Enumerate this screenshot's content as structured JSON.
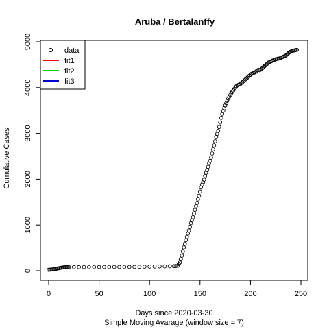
{
  "chart_data": {
    "type": "scatter",
    "title": "Aruba / Bertalanffy",
    "xlabel": "Days since 2020-03-30",
    "subtitle": "Simple Moving Avarage (window size = 7)",
    "ylabel": "Cumulative Cases",
    "xlim": [
      -6,
      254
    ],
    "ylim": [
      -200,
      5000
    ],
    "x_ticks": [
      0,
      50,
      100,
      150,
      200,
      250
    ],
    "y_ticks": [
      0,
      1000,
      2000,
      3000,
      4000,
      5000
    ],
    "grid": false,
    "legend": {
      "placement": "top-left",
      "entries": [
        {
          "label": "data",
          "kind": "point",
          "color": "#000000"
        },
        {
          "label": "fit1",
          "kind": "line",
          "color": "#ff0000"
        },
        {
          "label": "fit2",
          "kind": "line",
          "color": "#00cd00"
        },
        {
          "label": "fit3",
          "kind": "line",
          "color": "#0000cd"
        }
      ]
    },
    "series": [
      {
        "name": "data",
        "style": "open-circle",
        "points": [
          [
            0,
            20
          ],
          [
            1,
            22
          ],
          [
            2,
            25
          ],
          [
            3,
            27
          ],
          [
            4,
            30
          ],
          [
            5,
            33
          ],
          [
            6,
            36
          ],
          [
            7,
            40
          ],
          [
            8,
            45
          ],
          [
            9,
            50
          ],
          [
            10,
            55
          ],
          [
            11,
            60
          ],
          [
            12,
            64
          ],
          [
            13,
            68
          ],
          [
            14,
            72
          ],
          [
            15,
            75
          ],
          [
            16,
            76
          ],
          [
            17,
            77
          ],
          [
            18,
            78
          ],
          [
            19,
            78
          ],
          [
            20,
            79
          ],
          [
            25,
            80
          ],
          [
            30,
            80
          ],
          [
            35,
            81
          ],
          [
            40,
            81
          ],
          [
            45,
            81
          ],
          [
            50,
            82
          ],
          [
            55,
            82
          ],
          [
            60,
            82
          ],
          [
            65,
            83
          ],
          [
            70,
            83
          ],
          [
            75,
            83
          ],
          [
            80,
            84
          ],
          [
            85,
            85
          ],
          [
            90,
            86
          ],
          [
            95,
            88
          ],
          [
            100,
            90
          ],
          [
            105,
            92
          ],
          [
            110,
            94
          ],
          [
            115,
            96
          ],
          [
            120,
            98
          ],
          [
            124,
            100
          ],
          [
            126,
            103
          ],
          [
            128,
            108
          ],
          [
            129,
            150
          ],
          [
            130,
            180
          ],
          [
            131,
            250
          ],
          [
            132,
            330
          ],
          [
            133,
            420
          ],
          [
            134,
            510
          ],
          [
            135,
            590
          ],
          [
            136,
            670
          ],
          [
            137,
            740
          ],
          [
            138,
            810
          ],
          [
            139,
            880
          ],
          [
            140,
            960
          ],
          [
            141,
            1040
          ],
          [
            142,
            1100
          ],
          [
            143,
            1170
          ],
          [
            144,
            1250
          ],
          [
            145,
            1330
          ],
          [
            146,
            1410
          ],
          [
            147,
            1480
          ],
          [
            148,
            1560
          ],
          [
            149,
            1640
          ],
          [
            150,
            1730
          ],
          [
            151,
            1820
          ],
          [
            152,
            1880
          ],
          [
            153,
            1930
          ],
          [
            154,
            1990
          ],
          [
            155,
            2070
          ],
          [
            156,
            2140
          ],
          [
            157,
            2200
          ],
          [
            158,
            2270
          ],
          [
            159,
            2340
          ],
          [
            160,
            2400
          ],
          [
            161,
            2470
          ],
          [
            162,
            2560
          ],
          [
            163,
            2650
          ],
          [
            164,
            2740
          ],
          [
            165,
            2830
          ],
          [
            166,
            2920
          ],
          [
            167,
            2990
          ],
          [
            168,
            3060
          ],
          [
            169,
            3140
          ],
          [
            170,
            3240
          ],
          [
            171,
            3340
          ],
          [
            172,
            3420
          ],
          [
            173,
            3490
          ],
          [
            174,
            3550
          ],
          [
            175,
            3610
          ],
          [
            176,
            3660
          ],
          [
            177,
            3710
          ],
          [
            178,
            3760
          ],
          [
            179,
            3800
          ],
          [
            180,
            3840
          ],
          [
            181,
            3880
          ],
          [
            182,
            3910
          ],
          [
            183,
            3940
          ],
          [
            184,
            3970
          ],
          [
            185,
            4000
          ],
          [
            186,
            4030
          ],
          [
            187,
            4050
          ],
          [
            188,
            4060
          ],
          [
            189,
            4070
          ],
          [
            190,
            4080
          ],
          [
            191,
            4100
          ],
          [
            192,
            4120
          ],
          [
            193,
            4140
          ],
          [
            194,
            4160
          ],
          [
            195,
            4180
          ],
          [
            196,
            4200
          ],
          [
            197,
            4220
          ],
          [
            198,
            4240
          ],
          [
            199,
            4260
          ],
          [
            200,
            4280
          ],
          [
            201,
            4300
          ],
          [
            202,
            4310
          ],
          [
            203,
            4320
          ],
          [
            204,
            4330
          ],
          [
            205,
            4340
          ],
          [
            206,
            4360
          ],
          [
            207,
            4380
          ],
          [
            208,
            4390
          ],
          [
            209,
            4380
          ],
          [
            210,
            4390
          ],
          [
            211,
            4410
          ],
          [
            212,
            4430
          ],
          [
            213,
            4450
          ],
          [
            214,
            4470
          ],
          [
            215,
            4490
          ],
          [
            216,
            4510
          ],
          [
            217,
            4530
          ],
          [
            218,
            4550
          ],
          [
            219,
            4560
          ],
          [
            220,
            4570
          ],
          [
            221,
            4580
          ],
          [
            222,
            4590
          ],
          [
            223,
            4600
          ],
          [
            224,
            4610
          ],
          [
            225,
            4620
          ],
          [
            226,
            4625
          ],
          [
            227,
            4630
          ],
          [
            228,
            4635
          ],
          [
            229,
            4640
          ],
          [
            230,
            4650
          ],
          [
            231,
            4660
          ],
          [
            232,
            4670
          ],
          [
            233,
            4680
          ],
          [
            234,
            4690
          ],
          [
            235,
            4700
          ],
          [
            236,
            4720
          ],
          [
            237,
            4740
          ],
          [
            238,
            4760
          ],
          [
            239,
            4775
          ],
          [
            240,
            4785
          ],
          [
            241,
            4795
          ],
          [
            242,
            4805
          ],
          [
            243,
            4810
          ],
          [
            244,
            4815
          ],
          [
            245,
            4820
          ],
          [
            246,
            4825
          ]
        ]
      }
    ]
  }
}
